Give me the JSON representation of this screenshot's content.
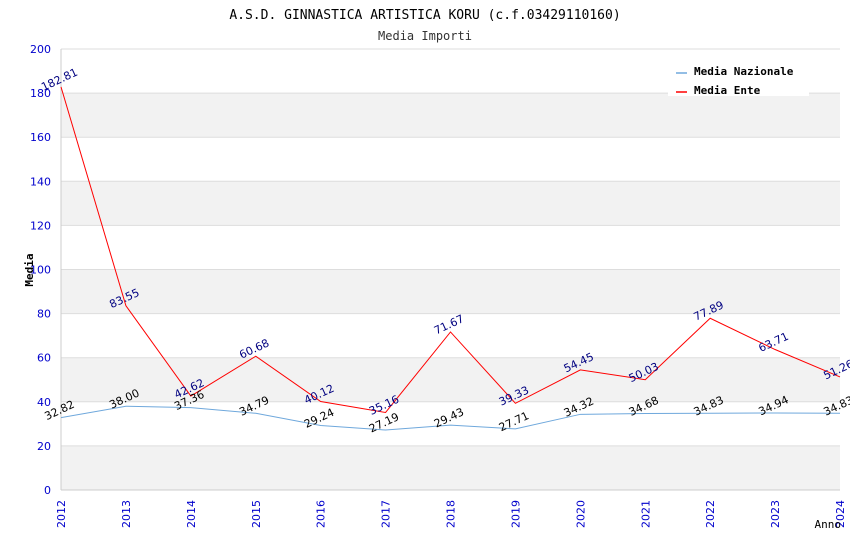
{
  "chart_data": {
    "type": "line",
    "title": "A.S.D. GINNASTICA ARTISTICA KORU (c.f.03429110160)",
    "subtitle": "Media Importi",
    "xlabel": "Anno",
    "ylabel": "Media",
    "ylim": [
      0,
      200
    ],
    "yticks": [
      "0",
      "20",
      "40",
      "60",
      "80",
      "100",
      "120",
      "140",
      "160",
      "180",
      "200"
    ],
    "categories": [
      "2012",
      "2013",
      "2014",
      "2015",
      "2016",
      "2017",
      "2018",
      "2019",
      "2020",
      "2021",
      "2022",
      "2023",
      "2024"
    ],
    "legend_position": "top-right",
    "series": [
      {
        "name": "Media Nazionale",
        "color": "#6fa8dc",
        "label_color": "#000000",
        "values": [
          32.82,
          38.0,
          37.36,
          34.79,
          29.24,
          27.19,
          29.43,
          27.71,
          34.32,
          34.68,
          34.83,
          34.94,
          34.83
        ],
        "labels": [
          "32.82",
          "38.00",
          "37.36",
          "34.79",
          "29.24",
          "27.19",
          "29.43",
          "27.71",
          "34.32",
          "34.68",
          "34.83",
          "34.94",
          "34.83"
        ]
      },
      {
        "name": "Media Ente",
        "color": "#ff0000",
        "label_color": "#000080",
        "values": [
          182.81,
          83.55,
          42.62,
          60.68,
          40.12,
          35.16,
          71.67,
          39.33,
          54.45,
          50.03,
          77.89,
          63.71,
          51.26
        ],
        "labels": [
          "182.81",
          "83.55",
          "42.62",
          "60.68",
          "40.12",
          "35.16",
          "71.67",
          "39.33",
          "54.45",
          "50.03",
          "77.89",
          "63.71",
          "51.26"
        ]
      }
    ]
  }
}
